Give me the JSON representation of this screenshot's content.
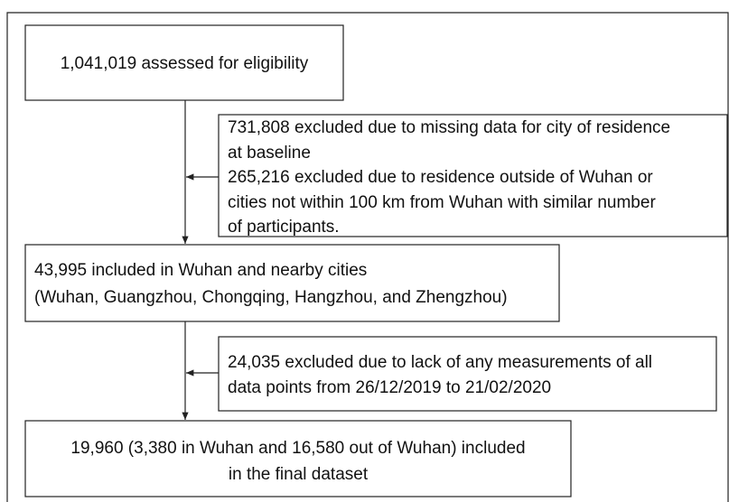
{
  "steps": [
    {
      "lines": [
        "1,041,019 assessed for eligibility"
      ]
    },
    {
      "lines": [
        "43,995 included in Wuhan and nearby cities",
        "(Wuhan, Guangzhou, Chongqing, Hangzhou, and Zhengzhou)"
      ]
    },
    {
      "lines": [
        "19,960 (3,380 in Wuhan and 16,580 out of Wuhan) included",
        "in the final dataset"
      ]
    }
  ],
  "exclusions": [
    {
      "lines": [
        "731,808 excluded due to missing data for city of residence",
        "at baseline",
        "265,216 excluded due to residence outside of Wuhan or",
        "cities not within 100 km from Wuhan with similar number",
        "of participants."
      ]
    },
    {
      "lines": [
        "24,035 excluded due to lack of any measurements of all",
        "data points from 26/12/2019 to 21/02/2020"
      ]
    }
  ]
}
